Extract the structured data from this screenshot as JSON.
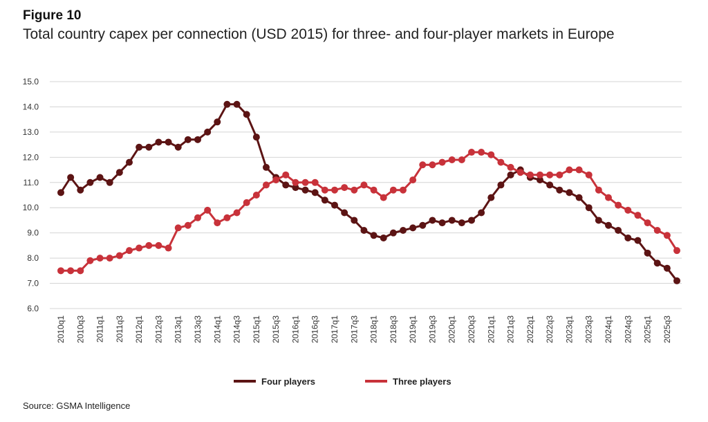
{
  "figure_label": "Figure 10",
  "title": "Total country capex per connection (USD 2015) for three- and four-player markets in Europe",
  "source": "Source: GSMA Intelligence",
  "chart_data": {
    "type": "line",
    "x": [
      "2010q1",
      "2010q2",
      "2010q3",
      "2010q4",
      "2011q1",
      "2011q2",
      "2011q3",
      "2011q4",
      "2012q1",
      "2012q2",
      "2012q3",
      "2012q4",
      "2013q1",
      "2013q2",
      "2013q3",
      "2013q4",
      "2014q1",
      "2014q2",
      "2014q3",
      "2014q4",
      "2015q1",
      "2015q2",
      "2015q3",
      "2015q4",
      "2016q1",
      "2016q2",
      "2016q3",
      "2016q4",
      "2017q1",
      "2017q2",
      "2017q3",
      "2017q4",
      "2018q1",
      "2018q2",
      "2018q3",
      "2018q4",
      "2019q1",
      "2019q2",
      "2019q3",
      "2019q4",
      "2020q1",
      "2020q2",
      "2020q3",
      "2020q4",
      "2021q1",
      "2021q2",
      "2021q3",
      "2021q4",
      "2022q1",
      "2022q2",
      "2022q3",
      "2022q4",
      "2023q1",
      "2023q2",
      "2023q3",
      "2023q4",
      "2024q1",
      "2024q2",
      "2024q3",
      "2024q4",
      "2025q1",
      "2025q2",
      "2025q3",
      "2025q4"
    ],
    "x_tick_labels": [
      "2010q1",
      "2010q3",
      "2011q1",
      "2011q3",
      "2012q1",
      "2012q3",
      "2013q1",
      "2013q3",
      "2014q1",
      "2014q3",
      "2015q1",
      "2015q3",
      "2016q1",
      "2016q3",
      "2017q1",
      "2017q3",
      "2018q1",
      "2018q3",
      "2019q1",
      "2019q3",
      "2020q1",
      "2020q3",
      "2021q1",
      "2021q3",
      "2022q1",
      "2022q3",
      "2023q1",
      "2023q3",
      "2024q1",
      "2024q3",
      "2025q1",
      "2025q3"
    ],
    "y_ticks": [
      "6.0",
      "7.0",
      "8.0",
      "9.0",
      "10.0",
      "11.0",
      "12.0",
      "13.0",
      "14.0",
      "15.0"
    ],
    "ylim": [
      6.0,
      15.0
    ],
    "grid": true,
    "legend_position": "bottom",
    "series": [
      {
        "name": "Four players",
        "color": "#5c1414",
        "values": [
          10.6,
          11.2,
          10.7,
          11.0,
          11.2,
          11.0,
          11.4,
          11.8,
          12.4,
          12.4,
          12.6,
          12.6,
          12.4,
          12.7,
          12.7,
          13.0,
          13.4,
          14.1,
          14.1,
          13.7,
          12.8,
          11.6,
          11.2,
          10.9,
          10.8,
          10.7,
          10.6,
          10.3,
          10.1,
          9.8,
          9.5,
          9.1,
          8.9,
          8.8,
          9.0,
          9.1,
          9.2,
          9.3,
          9.5,
          9.4,
          9.5,
          9.4,
          9.5,
          9.8,
          10.4,
          10.9,
          11.3,
          11.5,
          11.2,
          11.1,
          10.9,
          10.7,
          10.6,
          10.4,
          10.0,
          9.5,
          9.3,
          9.1,
          8.8,
          8.7,
          8.2,
          7.8,
          7.6,
          7.1
        ]
      },
      {
        "name": "Three players",
        "color": "#c8323a",
        "values": [
          7.5,
          7.5,
          7.5,
          7.9,
          8.0,
          8.0,
          8.1,
          8.3,
          8.4,
          8.5,
          8.5,
          8.4,
          9.2,
          9.3,
          9.6,
          9.9,
          9.4,
          9.6,
          9.8,
          10.2,
          10.5,
          10.9,
          11.1,
          11.3,
          11.0,
          11.0,
          11.0,
          10.7,
          10.7,
          10.8,
          10.7,
          10.9,
          10.7,
          10.4,
          10.7,
          10.7,
          11.1,
          11.7,
          11.7,
          11.8,
          11.9,
          11.9,
          12.2,
          12.2,
          12.1,
          11.8,
          11.6,
          11.4,
          11.3,
          11.3,
          11.3,
          11.3,
          11.5,
          11.5,
          11.3,
          10.7,
          10.4,
          10.1,
          9.9,
          9.7,
          9.4,
          9.1,
          8.9,
          8.3
        ]
      }
    ]
  }
}
